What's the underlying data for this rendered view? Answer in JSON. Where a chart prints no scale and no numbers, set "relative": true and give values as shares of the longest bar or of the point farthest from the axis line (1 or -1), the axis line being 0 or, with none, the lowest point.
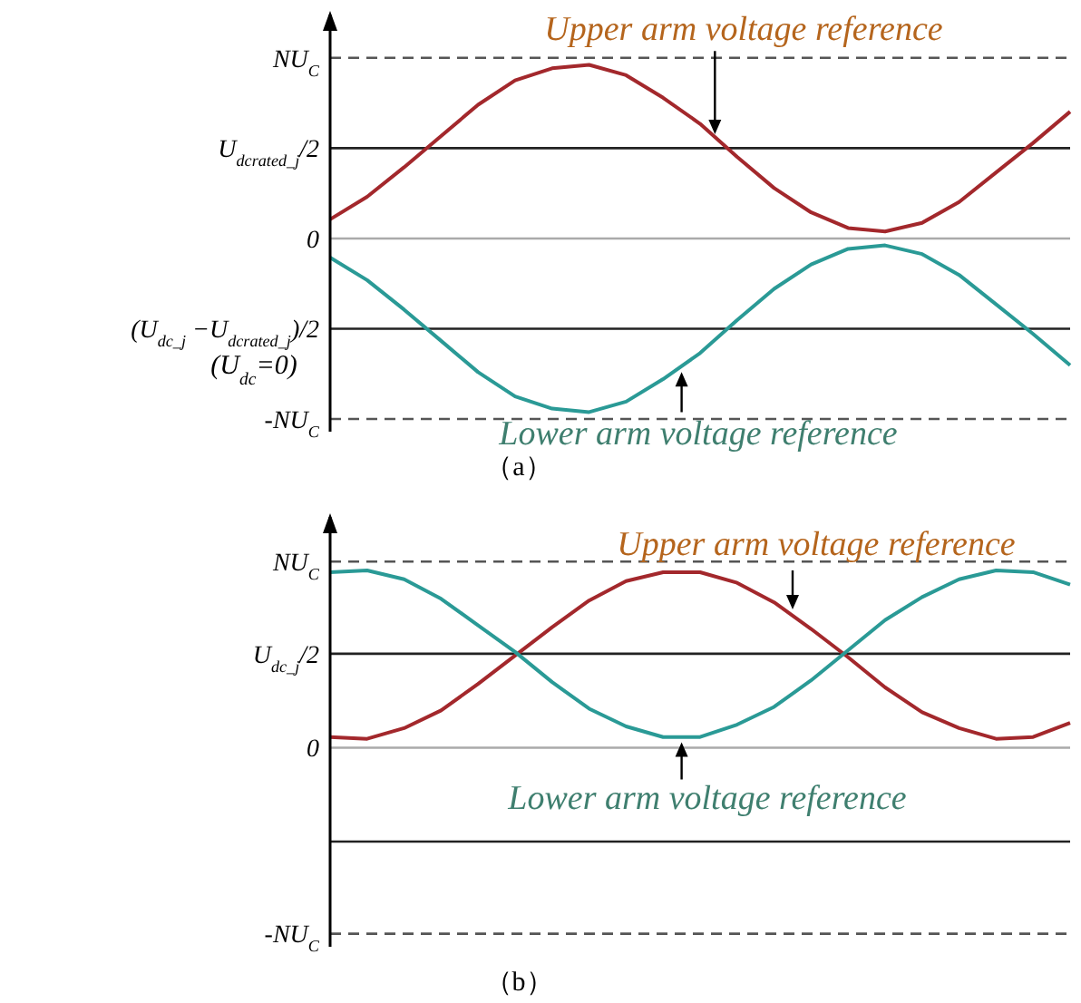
{
  "chart_data": [
    {
      "type": "line",
      "title": "（a）",
      "relative": true,
      "categories": [
        null,
        null,
        null,
        null,
        null,
        null,
        null,
        null,
        null,
        null,
        null,
        null,
        null,
        null,
        null,
        null,
        null,
        null,
        null,
        null,
        null
      ],
      "grid": false,
      "marker": "none",
      "line_style": "solid",
      "series": [
        {
          "color": "#a3282c",
          "values": [
            0.11,
            0.24,
            0.41,
            0.59,
            0.77,
            0.91,
            0.98,
            1,
            0.94,
            0.81,
            0.66,
            0.47,
            0.29,
            0.15,
            0.06,
            0.04,
            0.09,
            0.21,
            0.38,
            0.55,
            0.73
          ]
        },
        {
          "color": "#2a9a96",
          "values": [
            -0.11,
            -0.24,
            -0.41,
            -0.59,
            -0.77,
            -0.91,
            -0.98,
            -1,
            -0.94,
            -0.81,
            -0.66,
            -0.47,
            -0.29,
            -0.15,
            -0.06,
            -0.04,
            -0.09,
            -0.21,
            -0.38,
            -0.55,
            -0.73
          ]
        }
      ],
      "ref_lines": [
        {
          "axis": "y",
          "value": 1.04,
          "label": "NU$_{C}$",
          "color": "#555555",
          "line_style": "dashed"
        },
        {
          "axis": "y",
          "value": 0.52,
          "label": "U$_{dcrated_j}$/2",
          "color": "#222222",
          "line_style": "solid"
        },
        {
          "axis": "y",
          "value": 0,
          "label": "0",
          "color": "#aaaaaa",
          "line_style": "solid"
        },
        {
          "axis": "y",
          "value": -0.52,
          "label": "(U$_{dc_j}$ −U$_{dcrated_j}$)/2",
          "color": "#222222",
          "line_style": "solid"
        },
        {
          "axis": "y",
          "value": -1.04,
          "label": "-NU$_{C}$",
          "color": "#555555",
          "line_style": "dashed"
        }
      ],
      "annotations": [
        "Upper arm voltage reference",
        "Lower arm voltage reference",
        "(U$_{dc}$=0)"
      ]
    },
    {
      "type": "line",
      "title": "（b）",
      "relative": true,
      "categories": [
        null,
        null,
        null,
        null,
        null,
        null,
        null,
        null,
        null,
        null,
        null,
        null,
        null,
        null,
        null,
        null,
        null,
        null,
        null,
        null,
        null
      ],
      "grid": false,
      "marker": "none",
      "line_style": "solid",
      "series": [
        {
          "color": "#a3282c",
          "values": [
            0.06,
            0.05,
            0.11,
            0.21,
            0.36,
            0.52,
            0.68,
            0.83,
            0.94,
            0.99,
            0.99,
            0.93,
            0.82,
            0.67,
            0.51,
            0.34,
            0.2,
            0.11,
            0.05,
            0.06,
            0.14
          ]
        },
        {
          "color": "#2a9a96",
          "values": [
            0.99,
            1,
            0.95,
            0.84,
            0.69,
            0.54,
            0.37,
            0.22,
            0.12,
            0.06,
            0.06,
            0.13,
            0.23,
            0.38,
            0.55,
            0.72,
            0.85,
            0.95,
            1,
            0.99,
            0.92
          ]
        }
      ],
      "ref_lines": [
        {
          "axis": "y",
          "value": 1.05,
          "label": "NU$_{C}$",
          "color": "#555555",
          "line_style": "dashed"
        },
        {
          "axis": "y",
          "value": 0.53,
          "label": "U$_{dc_j}$/2",
          "color": "#222222",
          "line_style": "solid"
        },
        {
          "axis": "y",
          "value": 0,
          "label": "0",
          "color": "#aaaaaa",
          "line_style": "solid"
        },
        {
          "axis": "y",
          "value": -0.53,
          "color": "#222222",
          "line_style": "solid"
        },
        {
          "axis": "y",
          "value": -1.05,
          "label": "-NU$_{C}$",
          "color": "#555555",
          "line_style": "dashed"
        }
      ],
      "annotations": [
        "Upper arm voltage reference",
        "Lower arm voltage reference"
      ]
    }
  ]
}
